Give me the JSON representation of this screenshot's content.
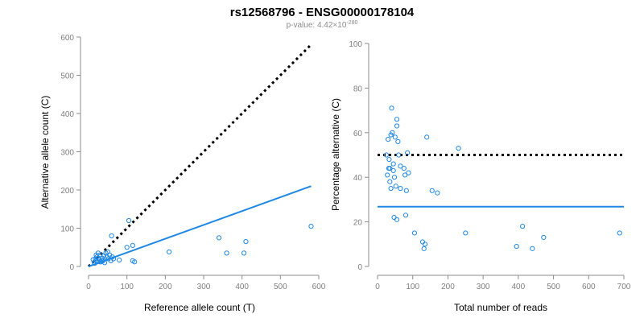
{
  "header": {
    "title": "rs12568796 - ENSG00000178104",
    "pvalue_prefix": "p-value: 4.42×10",
    "pvalue_exponent": "-280"
  },
  "colors": {
    "points": "#1f88e5",
    "fit_line": "#1f88e5",
    "reference_line": "#000000",
    "axis": "#8c8c8c"
  },
  "chart_data": [
    {
      "type": "scatter",
      "xlabel": "Reference allele count (T)",
      "ylabel": "Alternative allele count (C)",
      "xlim": [
        0,
        600
      ],
      "ylim": [
        0,
        600
      ],
      "xticks": [
        0,
        100,
        200,
        300,
        400,
        500,
        600
      ],
      "yticks": [
        0,
        100,
        200,
        300,
        400,
        500,
        600
      ],
      "points": [
        [
          15,
          10
        ],
        [
          18,
          20
        ],
        [
          20,
          15
        ],
        [
          22,
          25
        ],
        [
          25,
          35
        ],
        [
          28,
          18
        ],
        [
          30,
          30
        ],
        [
          32,
          12
        ],
        [
          35,
          22
        ],
        [
          38,
          15
        ],
        [
          40,
          28
        ],
        [
          42,
          10
        ],
        [
          45,
          35
        ],
        [
          48,
          25
        ],
        [
          50,
          38
        ],
        [
          52,
          20
        ],
        [
          55,
          30
        ],
        [
          58,
          15
        ],
        [
          60,
          80
        ],
        [
          62,
          25
        ],
        [
          65,
          20
        ],
        [
          20,
          30
        ],
        [
          25,
          22
        ],
        [
          30,
          12
        ],
        [
          35,
          15
        ],
        [
          12,
          18
        ],
        [
          16,
          8
        ],
        [
          22,
          12
        ],
        [
          80,
          17
        ],
        [
          100,
          50
        ],
        [
          105,
          120
        ],
        [
          115,
          15
        ],
        [
          115,
          55
        ],
        [
          120,
          12
        ],
        [
          210,
          38
        ],
        [
          340,
          75
        ],
        [
          360,
          35
        ],
        [
          405,
          35
        ],
        [
          410,
          65
        ],
        [
          580,
          105
        ]
      ],
      "lines": [
        {
          "kind": "dotted",
          "from": [
            0,
            0
          ],
          "to": [
            580,
            580
          ]
        },
        {
          "kind": "solid",
          "from": [
            0,
            0
          ],
          "to": [
            580,
            210
          ]
        }
      ]
    },
    {
      "type": "scatter",
      "xlabel": "Total number of reads",
      "ylabel": "Percentage alternative (C)",
      "xlim": [
        0,
        700
      ],
      "ylim": [
        0,
        100
      ],
      "xticks": [
        0,
        100,
        200,
        300,
        400,
        500,
        600,
        700
      ],
      "yticks": [
        0,
        20,
        40,
        60,
        80,
        100
      ],
      "points": [
        [
          25,
          50
        ],
        [
          28,
          41
        ],
        [
          30,
          57
        ],
        [
          32,
          44
        ],
        [
          33,
          48
        ],
        [
          35,
          38
        ],
        [
          35,
          44
        ],
        [
          38,
          35
        ],
        [
          38,
          59
        ],
        [
          40,
          71
        ],
        [
          42,
          60
        ],
        [
          45,
          46
        ],
        [
          45,
          43
        ],
        [
          47,
          22
        ],
        [
          48,
          40
        ],
        [
          50,
          58
        ],
        [
          52,
          36
        ],
        [
          55,
          63
        ],
        [
          55,
          66
        ],
        [
          55,
          21
        ],
        [
          58,
          56
        ],
        [
          60,
          50
        ],
        [
          65,
          45
        ],
        [
          65,
          35
        ],
        [
          75,
          44
        ],
        [
          78,
          41
        ],
        [
          80,
          23
        ],
        [
          82,
          34
        ],
        [
          85,
          51
        ],
        [
          88,
          42
        ],
        [
          105,
          15
        ],
        [
          128,
          11
        ],
        [
          132,
          8
        ],
        [
          135,
          10
        ],
        [
          140,
          58
        ],
        [
          155,
          34
        ],
        [
          170,
          33
        ],
        [
          230,
          53
        ],
        [
          250,
          15
        ],
        [
          395,
          9
        ],
        [
          412,
          18
        ],
        [
          440,
          8
        ],
        [
          472,
          13
        ],
        [
          688,
          15
        ]
      ],
      "lines": [
        {
          "kind": "dotted",
          "y": 50
        },
        {
          "kind": "solid",
          "y": 26.8
        }
      ]
    }
  ]
}
